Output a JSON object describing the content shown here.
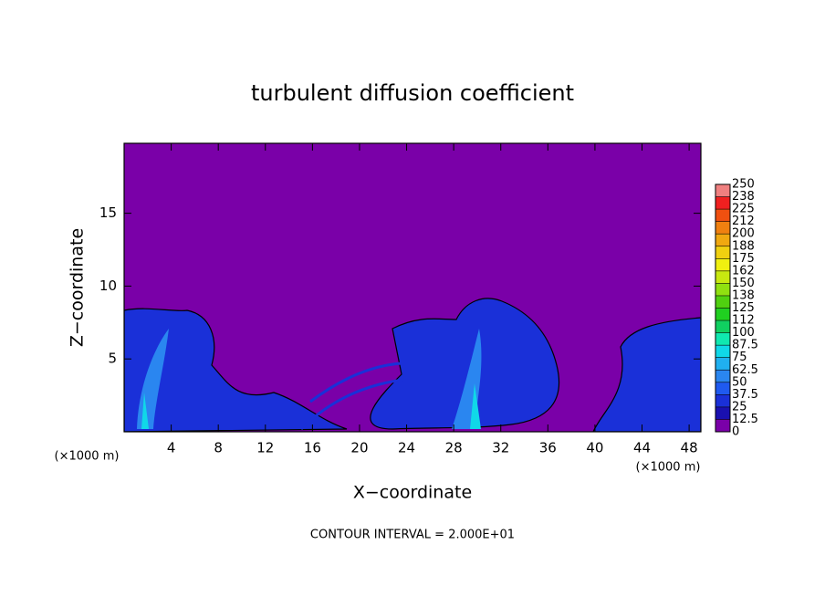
{
  "chart_data": {
    "type": "contour",
    "title": "turbulent diffusion coefficient",
    "xlabel": "X−coordinate",
    "ylabel": "Z−coordinate",
    "x_unit_left": "(×1000 m)",
    "x_unit_right": "(×1000 m)",
    "note": "CONTOUR INTERVAL = 2.000E+01",
    "xlim": [
      0,
      49
    ],
    "ylim": [
      0,
      19.8
    ],
    "xticks": [
      4,
      8,
      12,
      16,
      20,
      24,
      28,
      32,
      36,
      40,
      44,
      48
    ],
    "yticks": [
      5,
      10,
      15
    ],
    "colorbar": {
      "levels": [
        0,
        12.5,
        25,
        37.5,
        50,
        62.5,
        75,
        87.5,
        100,
        {
          "value": 112.5,
          "label": "112"
        },
        125,
        {
          "value": 137.5,
          "label": "138"
        },
        150,
        {
          "value": 162.5,
          "label": "162"
        },
        175,
        {
          "value": 187.5,
          "label": "188"
        },
        200,
        {
          "value": 212.5,
          "label": "212"
        },
        225,
        {
          "value": 237.5,
          "label": "238"
        },
        250
      ],
      "colors": [
        "#7a00a8",
        "#1a10b0",
        "#1a30d8",
        "#1f5af0",
        "#2a86f0",
        "#20b0f0",
        "#10d8e8",
        "#10e8b0",
        "#10d060",
        "#20d020",
        "#50d010",
        "#90e010",
        "#c8e810",
        "#f0f010",
        "#f0d010",
        "#f0a810",
        "#f08010",
        "#f05010",
        "#f02020",
        "#f08080"
      ]
    }
  }
}
